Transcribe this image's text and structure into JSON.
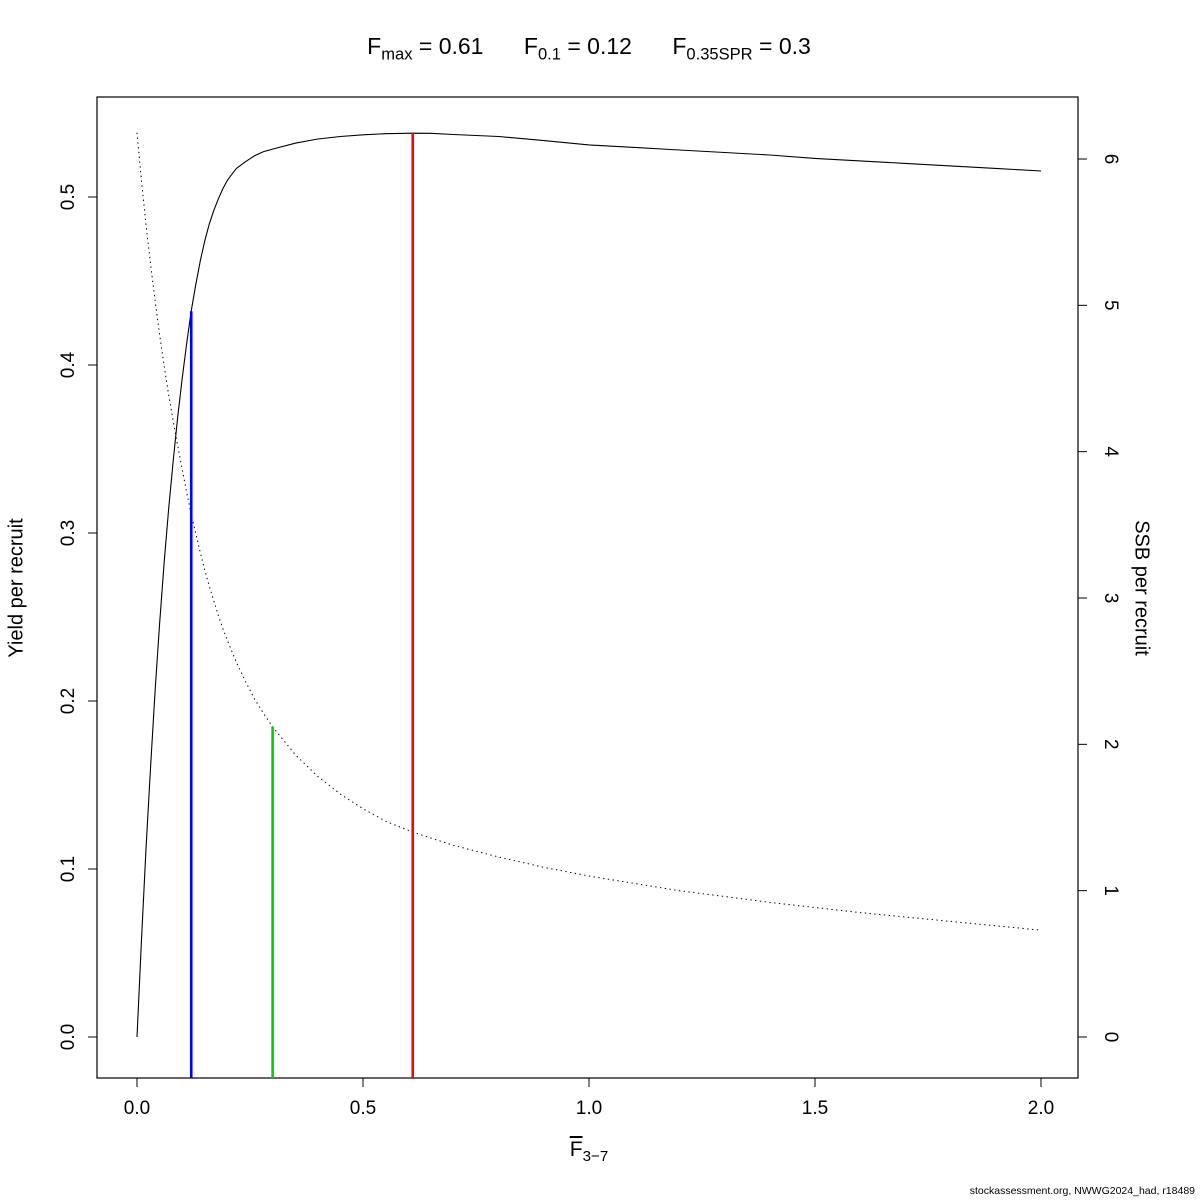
{
  "title": {
    "items": [
      {
        "base": "F",
        "sub": "max",
        "eq": " = 0.61"
      },
      {
        "base": "F",
        "sub": "0.1",
        "eq": " = 0.12"
      },
      {
        "base": "F",
        "sub": "0.35SPR",
        "eq": " = 0.3"
      }
    ]
  },
  "x_axis_label": {
    "base": "F",
    "sub": "3−7"
  },
  "footer": {
    "text": "stockassessment.org, NWWG2024_had, r18489"
  },
  "chart_data": {
    "type": "line",
    "title": "Fmax = 0.61   F0.1 = 0.12   F0.35SPR = 0.3",
    "xlabel": "F̄3−7",
    "grid": false,
    "legend": "none",
    "x_axis": {
      "ticks": [
        0,
        0.5,
        1,
        1.5,
        2
      ],
      "tick_labels": [
        "0.0",
        "0.5",
        "1.0",
        "1.5",
        "2.0"
      ],
      "range": [
        -0.09,
        2.09
      ]
    },
    "y_left": {
      "label": "Yield per recruit",
      "ticks": [
        0,
        0.1,
        0.2,
        0.3,
        0.4,
        0.5
      ],
      "tick_labels": [
        "0.0",
        "0.1",
        "0.2",
        "0.3",
        "0.4",
        "0.5"
      ],
      "range": [
        -0.025,
        0.56
      ]
    },
    "y_right": {
      "label": "SSB per recruit",
      "ticks": [
        0,
        1,
        2,
        3,
        4,
        5,
        6
      ],
      "tick_labels": [
        "0",
        "1",
        "2",
        "3",
        "4",
        "5",
        "6"
      ],
      "range": [
        -0.28,
        6.44
      ]
    },
    "series": [
      {
        "id": "yield-per-recruit-curve",
        "name": "Yield per recruit",
        "axis": "left",
        "style": "solid",
        "color": "#000000",
        "width": 1.1,
        "points": [
          [
            0.0,
            0.0
          ],
          [
            0.01,
            0.058
          ],
          [
            0.02,
            0.112
          ],
          [
            0.03,
            0.161
          ],
          [
            0.04,
            0.206
          ],
          [
            0.05,
            0.246
          ],
          [
            0.06,
            0.282
          ],
          [
            0.07,
            0.314
          ],
          [
            0.08,
            0.343
          ],
          [
            0.09,
            0.369
          ],
          [
            0.1,
            0.392
          ],
          [
            0.11,
            0.413
          ],
          [
            0.12,
            0.432
          ],
          [
            0.13,
            0.448
          ],
          [
            0.14,
            0.462
          ],
          [
            0.15,
            0.474
          ],
          [
            0.16,
            0.484
          ],
          [
            0.17,
            0.492
          ],
          [
            0.18,
            0.499
          ],
          [
            0.19,
            0.505
          ],
          [
            0.2,
            0.51
          ],
          [
            0.22,
            0.517
          ],
          [
            0.24,
            0.521
          ],
          [
            0.26,
            0.5245
          ],
          [
            0.28,
            0.527
          ],
          [
            0.3,
            0.5285
          ],
          [
            0.35,
            0.532
          ],
          [
            0.4,
            0.5345
          ],
          [
            0.45,
            0.536
          ],
          [
            0.5,
            0.537
          ],
          [
            0.55,
            0.5377
          ],
          [
            0.61,
            0.538
          ],
          [
            0.65,
            0.5379
          ],
          [
            0.7,
            0.5372
          ],
          [
            0.8,
            0.536
          ],
          [
            0.9,
            0.5336
          ],
          [
            1.0,
            0.531
          ],
          [
            1.1,
            0.5295
          ],
          [
            1.2,
            0.528
          ],
          [
            1.3,
            0.5265
          ],
          [
            1.4,
            0.525
          ],
          [
            1.5,
            0.523
          ],
          [
            1.6,
            0.5215
          ],
          [
            1.7,
            0.52
          ],
          [
            1.8,
            0.5185
          ],
          [
            1.9,
            0.517
          ],
          [
            2.0,
            0.5155
          ]
        ]
      },
      {
        "id": "ssb-per-recruit-curve",
        "name": "SSB per recruit",
        "axis": "right",
        "style": "dotted",
        "color": "#000000",
        "width": 1,
        "points": [
          [
            0.0,
            6.18
          ],
          [
            0.01,
            5.85
          ],
          [
            0.02,
            5.55
          ],
          [
            0.03,
            5.28
          ],
          [
            0.04,
            5.03
          ],
          [
            0.05,
            4.8
          ],
          [
            0.06,
            4.59
          ],
          [
            0.07,
            4.39
          ],
          [
            0.08,
            4.21
          ],
          [
            0.09,
            4.04
          ],
          [
            0.1,
            3.88
          ],
          [
            0.11,
            3.72
          ],
          [
            0.12,
            3.57
          ],
          [
            0.13,
            3.44
          ],
          [
            0.14,
            3.31
          ],
          [
            0.15,
            3.19
          ],
          [
            0.16,
            3.08
          ],
          [
            0.17,
            2.98
          ],
          [
            0.18,
            2.88
          ],
          [
            0.19,
            2.79
          ],
          [
            0.2,
            2.71
          ],
          [
            0.22,
            2.56
          ],
          [
            0.24,
            2.43
          ],
          [
            0.26,
            2.31
          ],
          [
            0.28,
            2.21
          ],
          [
            0.3,
            2.12
          ],
          [
            0.35,
            1.93
          ],
          [
            0.4,
            1.78
          ],
          [
            0.45,
            1.66
          ],
          [
            0.5,
            1.56
          ],
          [
            0.55,
            1.475
          ],
          [
            0.61,
            1.4
          ],
          [
            0.65,
            1.36
          ],
          [
            0.7,
            1.31
          ],
          [
            0.75,
            1.27
          ],
          [
            0.8,
            1.23
          ],
          [
            0.9,
            1.16
          ],
          [
            1.0,
            1.1
          ],
          [
            1.1,
            1.05
          ],
          [
            1.2,
            1.0
          ],
          [
            1.3,
            0.96
          ],
          [
            1.4,
            0.92
          ],
          [
            1.5,
            0.885
          ],
          [
            1.6,
            0.85
          ],
          [
            1.7,
            0.82
          ],
          [
            1.8,
            0.79
          ],
          [
            1.9,
            0.76
          ],
          [
            2.0,
            0.73
          ]
        ]
      }
    ],
    "reference_lines": [
      {
        "id": "f01-reference",
        "name": "F0.1 = 0.12",
        "f": 0.12,
        "axis": "left",
        "top": 0.432,
        "color": "#0000ff"
      },
      {
        "id": "f035spr-reference",
        "name": "F0.35SPR = 0.3",
        "f": 0.3,
        "axis": "right",
        "top": 2.12,
        "color": "#00cd00"
      },
      {
        "id": "fmax-reference",
        "name": "Fmax = 0.61",
        "f": 0.61,
        "axis": "left",
        "top": 0.538,
        "color": "#ff0000"
      }
    ]
  }
}
